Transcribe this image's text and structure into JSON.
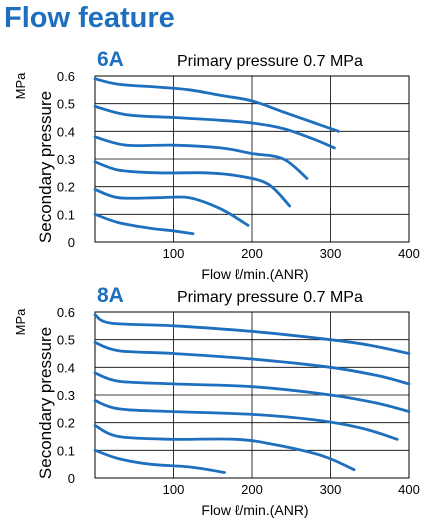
{
  "page": {
    "title": "Flow feature",
    "accent_color": "#1f6fbf",
    "curve_color": "#1f6fbf"
  },
  "chart_data": [
    {
      "type": "line",
      "label": "6A",
      "subtitle": "Primary pressure 0.7 MPa",
      "xlabel": "Flow ℓ/min.(ANR)",
      "ylabel": "Secondary pressure",
      "yunit": "MPa",
      "xlim": [
        0,
        400
      ],
      "ylim": [
        0,
        0.6
      ],
      "xticks": [
        "100",
        "200",
        "300",
        "400"
      ],
      "yticks": [
        "0",
        "0.1",
        "0.2",
        "0.3",
        "0.4",
        "0.5",
        "0.6"
      ],
      "grid": true,
      "series": [
        {
          "x": [
            0,
            30,
            80,
            120,
            160,
            200,
            240,
            280,
            310
          ],
          "y": [
            0.59,
            0.57,
            0.56,
            0.55,
            0.53,
            0.51,
            0.47,
            0.43,
            0.4
          ]
        },
        {
          "x": [
            0,
            40,
            100,
            160,
            200,
            240,
            280,
            305
          ],
          "y": [
            0.49,
            0.46,
            0.45,
            0.44,
            0.43,
            0.41,
            0.37,
            0.34
          ]
        },
        {
          "x": [
            0,
            40,
            100,
            160,
            200,
            240,
            270
          ],
          "y": [
            0.38,
            0.35,
            0.35,
            0.34,
            0.32,
            0.3,
            0.23
          ]
        },
        {
          "x": [
            0,
            30,
            80,
            140,
            180,
            220,
            248
          ],
          "y": [
            0.29,
            0.26,
            0.25,
            0.25,
            0.24,
            0.21,
            0.13
          ]
        },
        {
          "x": [
            0,
            30,
            80,
            120,
            160,
            195
          ],
          "y": [
            0.19,
            0.16,
            0.16,
            0.16,
            0.12,
            0.06
          ]
        },
        {
          "x": [
            0,
            30,
            70,
            100,
            125
          ],
          "y": [
            0.1,
            0.07,
            0.05,
            0.04,
            0.03
          ]
        }
      ]
    },
    {
      "type": "line",
      "label": "8A",
      "subtitle": "Primary pressure 0.7 MPa",
      "xlabel": "Flow ℓ/min.(ANR)",
      "ylabel": "Secondary pressure",
      "yunit": "MPa",
      "xlim": [
        0,
        400
      ],
      "ylim": [
        0,
        0.6
      ],
      "xticks": [
        "100",
        "200",
        "300",
        "400"
      ],
      "yticks": [
        "0",
        "0.1",
        "0.2",
        "0.3",
        "0.4",
        "0.5",
        "0.6"
      ],
      "grid": true,
      "series": [
        {
          "x": [
            0,
            20,
            100,
            200,
            300,
            350,
            400
          ],
          "y": [
            0.59,
            0.56,
            0.55,
            0.53,
            0.5,
            0.48,
            0.45
          ]
        },
        {
          "x": [
            0,
            30,
            100,
            200,
            300,
            360,
            400
          ],
          "y": [
            0.49,
            0.46,
            0.45,
            0.43,
            0.4,
            0.37,
            0.34
          ]
        },
        {
          "x": [
            0,
            30,
            100,
            200,
            300,
            360,
            400
          ],
          "y": [
            0.38,
            0.35,
            0.34,
            0.33,
            0.3,
            0.27,
            0.24
          ]
        },
        {
          "x": [
            0,
            30,
            100,
            200,
            280,
            340,
            385
          ],
          "y": [
            0.28,
            0.25,
            0.24,
            0.23,
            0.21,
            0.18,
            0.14
          ]
        },
        {
          "x": [
            0,
            30,
            100,
            180,
            230,
            290,
            330
          ],
          "y": [
            0.19,
            0.15,
            0.14,
            0.14,
            0.12,
            0.08,
            0.03
          ]
        },
        {
          "x": [
            0,
            30,
            70,
            120,
            165
          ],
          "y": [
            0.1,
            0.07,
            0.05,
            0.04,
            0.02
          ]
        }
      ]
    }
  ]
}
